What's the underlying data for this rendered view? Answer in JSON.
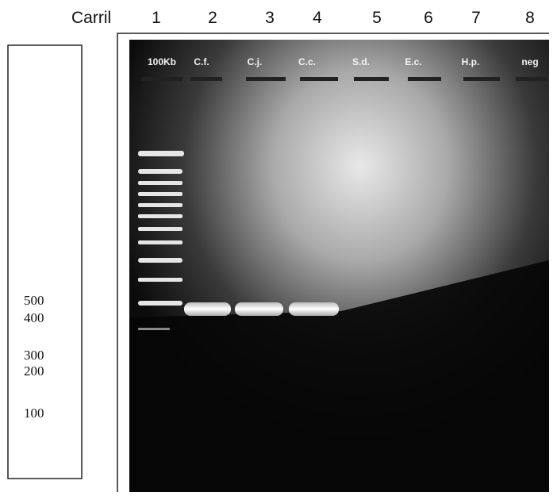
{
  "header": {
    "title": "Carril",
    "lanes": [
      "1",
      "2",
      "3",
      "4",
      "5",
      "6",
      "7",
      "8"
    ]
  },
  "markers": [
    "500",
    "400",
    "300",
    "200",
    "100"
  ],
  "gel": {
    "lane_labels": [
      "100Kb",
      "C.f.",
      "C.j.",
      "C.c.",
      "S.d.",
      "E.c.",
      "H.p.",
      "neg"
    ]
  }
}
